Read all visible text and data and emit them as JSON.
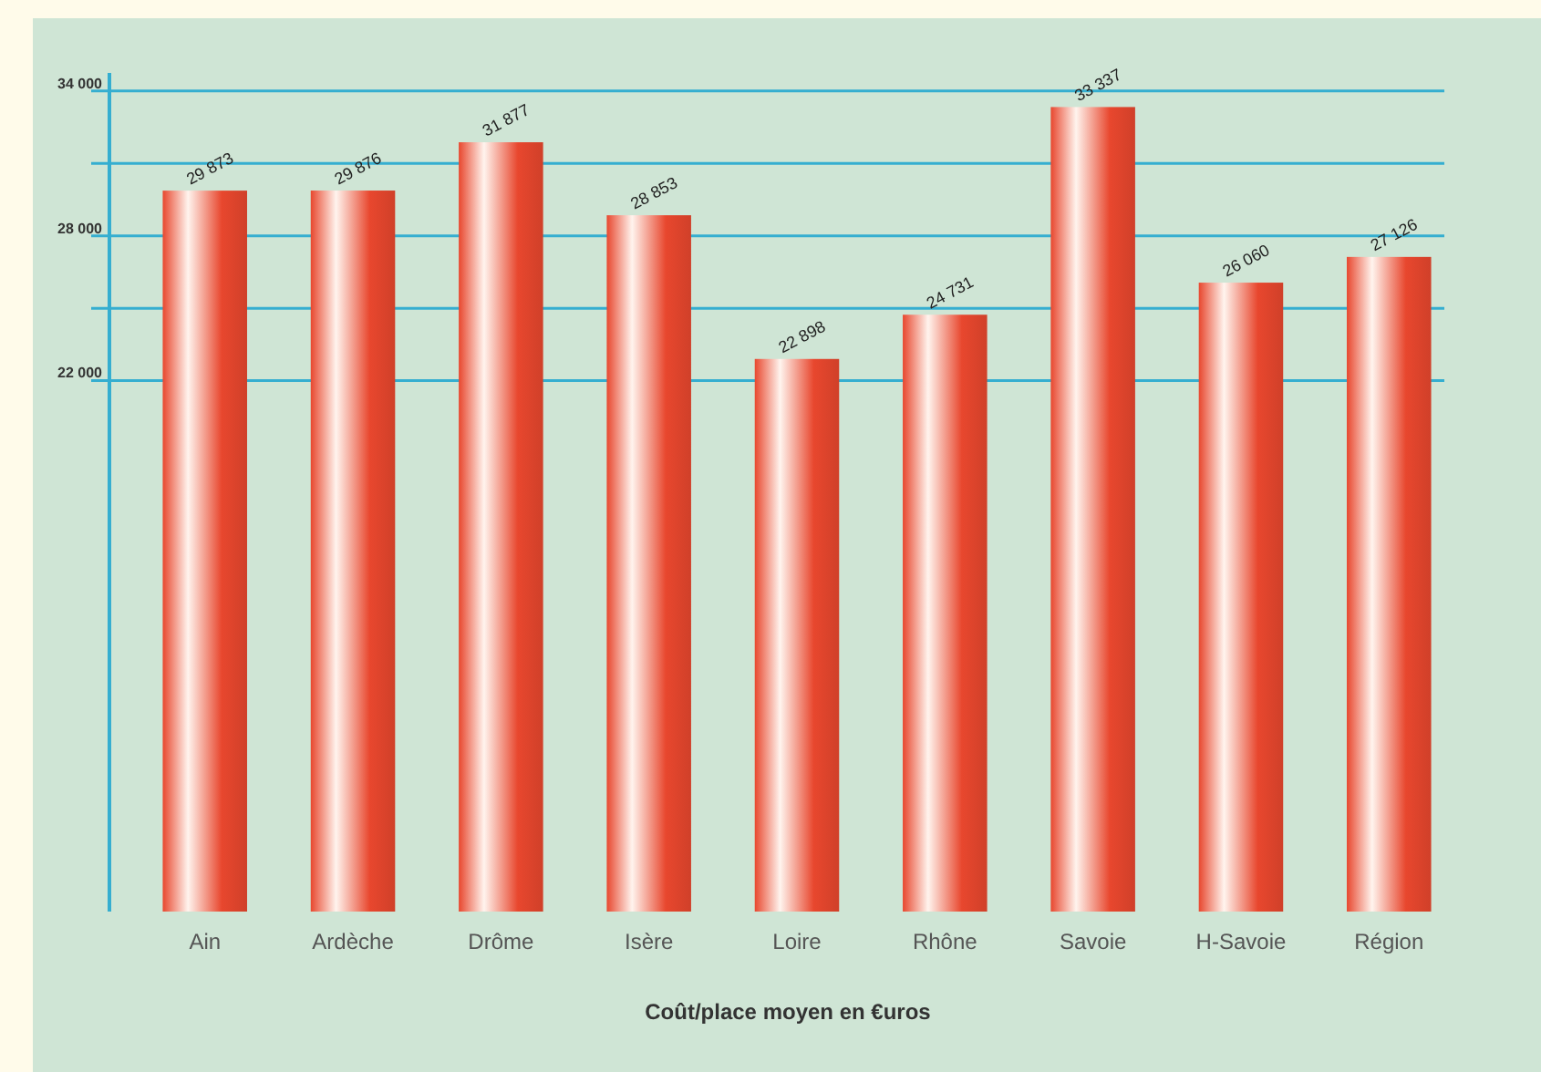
{
  "chart_data": {
    "type": "bar",
    "xlabel": "Coût/place moyen en €uros",
    "categories": [
      "Ain",
      "Ardèche",
      "Drôme",
      "Isère",
      "Loire",
      "Rhône",
      "Savoie",
      "H-Savoie",
      "Région"
    ],
    "values": [
      29873,
      29876,
      31877,
      28853,
      22898,
      24731,
      33337,
      26060,
      27126
    ],
    "value_labels": [
      "29 873",
      "29 876",
      "31 877",
      "28 853",
      "22 898",
      "24 731",
      "33 337",
      "26 060",
      "27 126"
    ],
    "color": "#e8472e",
    "ylim": [
      0,
      34750
    ],
    "yticks": [
      {
        "value": 22000,
        "label": "22 000"
      },
      {
        "value": 25000,
        "label": null
      },
      {
        "value": 28000,
        "label": "28 000"
      },
      {
        "value": 31000,
        "label": null
      },
      {
        "value": 34000,
        "label": "34 000"
      }
    ],
    "grid": "y"
  }
}
